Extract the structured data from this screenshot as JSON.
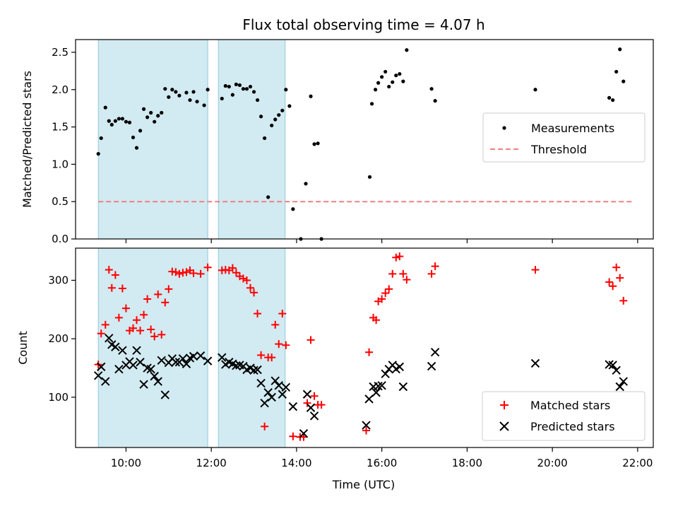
{
  "chart_data": [
    {
      "type": "scatter",
      "title": "Flux total observing time = 4.07 h",
      "ylabel": "Matched/Predicted stars",
      "xlim": [
        "08:49",
        "22:22"
      ],
      "ylim": [
        0,
        2.67
      ],
      "yticks": [
        0.0,
        0.5,
        1.0,
        1.5,
        2.0,
        2.5
      ],
      "ytick_labels": [
        "0.0",
        "0.5",
        "1.0",
        "1.5",
        "2.0",
        "2.5"
      ],
      "legend_position": "center-right",
      "shaded_intervals": [
        [
          "09:21",
          "11:55"
        ],
        [
          "12:10",
          "13:44"
        ]
      ],
      "shade_color": "#add8e6",
      "series": [
        {
          "name": "Measurements",
          "marker": "dot",
          "color": "#000000",
          "points": [
            [
              "09:21",
              1.14
            ],
            [
              "09:25",
              1.35
            ],
            [
              "09:31",
              1.76
            ],
            [
              "09:36",
              1.58
            ],
            [
              "09:40",
              1.53
            ],
            [
              "09:45",
              1.58
            ],
            [
              "09:50",
              1.61
            ],
            [
              "09:55",
              1.61
            ],
            [
              "10:00",
              1.57
            ],
            [
              "10:05",
              1.56
            ],
            [
              "10:10",
              1.36
            ],
            [
              "10:15",
              1.22
            ],
            [
              "10:20",
              1.45
            ],
            [
              "10:25",
              1.74
            ],
            [
              "10:30",
              1.63
            ],
            [
              "10:35",
              1.69
            ],
            [
              "10:40",
              1.57
            ],
            [
              "10:45",
              1.65
            ],
            [
              "10:50",
              1.69
            ],
            [
              "10:55",
              2.01
            ],
            [
              "11:00",
              1.9
            ],
            [
              "11:05",
              2.0
            ],
            [
              "11:10",
              1.97
            ],
            [
              "11:15",
              1.92
            ],
            [
              "11:25",
              1.96
            ],
            [
              "11:30",
              1.86
            ],
            [
              "11:35",
              1.97
            ],
            [
              "11:40",
              1.84
            ],
            [
              "11:50",
              1.79
            ],
            [
              "11:55",
              2.0
            ],
            [
              "12:15",
              1.88
            ],
            [
              "12:20",
              2.05
            ],
            [
              "12:25",
              2.04
            ],
            [
              "12:30",
              1.93
            ],
            [
              "12:35",
              2.07
            ],
            [
              "12:40",
              2.06
            ],
            [
              "12:45",
              2.01
            ],
            [
              "12:50",
              2.01
            ],
            [
              "12:55",
              2.04
            ],
            [
              "13:00",
              1.97
            ],
            [
              "13:05",
              1.86
            ],
            [
              "13:10",
              1.64
            ],
            [
              "13:15",
              1.35
            ],
            [
              "13:20",
              0.56
            ],
            [
              "13:25",
              1.52
            ],
            [
              "13:30",
              1.6
            ],
            [
              "13:35",
              1.66
            ],
            [
              "13:40",
              1.72
            ],
            [
              "13:45",
              2.0
            ],
            [
              "13:50",
              1.78
            ],
            [
              "13:55",
              0.4
            ],
            [
              "14:06",
              0.0
            ],
            [
              "14:13",
              0.74
            ],
            [
              "14:20",
              1.91
            ],
            [
              "14:25",
              1.27
            ],
            [
              "14:30",
              1.28
            ],
            [
              "14:35",
              0.0
            ],
            [
              "15:43",
              0.83
            ],
            [
              "15:46",
              1.81
            ],
            [
              "15:51",
              2.0
            ],
            [
              "15:55",
              2.09
            ],
            [
              "16:00",
              2.17
            ],
            [
              "16:05",
              2.24
            ],
            [
              "16:10",
              2.04
            ],
            [
              "16:15",
              2.1
            ],
            [
              "16:20",
              2.19
            ],
            [
              "16:25",
              2.21
            ],
            [
              "16:30",
              2.11
            ],
            [
              "16:35",
              2.53
            ],
            [
              "17:10",
              2.01
            ],
            [
              "17:15",
              1.85
            ],
            [
              "19:36",
              2.0
            ],
            [
              "21:20",
              1.89
            ],
            [
              "21:25",
              1.86
            ],
            [
              "21:30",
              2.24
            ],
            [
              "21:35",
              2.54
            ],
            [
              "21:40",
              2.11
            ]
          ]
        },
        {
          "name": "Threshold",
          "marker": "dashed-line",
          "color": "#f08080",
          "value": 0.5,
          "x_range": [
            "09:21",
            "21:55"
          ]
        }
      ]
    },
    {
      "type": "scatter",
      "xlabel": "Time (UTC)",
      "ylabel": "Count",
      "xlim": [
        "08:49",
        "22:22"
      ],
      "ylim": [
        14,
        355
      ],
      "xticks": [
        "10:00",
        "12:00",
        "14:00",
        "16:00",
        "18:00",
        "20:00",
        "22:00"
      ],
      "yticks": [
        100,
        200,
        300
      ],
      "ytick_labels": [
        "100",
        "200",
        "300"
      ],
      "legend_position": "bottom-right",
      "shaded_intervals": [
        [
          "09:21",
          "11:55"
        ],
        [
          "12:10",
          "13:44"
        ]
      ],
      "shade_color": "#add8e6",
      "series": [
        {
          "name": "Matched stars",
          "marker": "plus",
          "color": "#ff0000",
          "points": [
            [
              "09:21",
              156
            ],
            [
              "09:25",
              209
            ],
            [
              "09:31",
              224
            ],
            [
              "09:36",
              318
            ],
            [
              "09:40",
              287
            ],
            [
              "09:45",
              309
            ],
            [
              "09:50",
              236
            ],
            [
              "09:55",
              286
            ],
            [
              "10:00",
              252
            ],
            [
              "10:05",
              214
            ],
            [
              "10:10",
              218
            ],
            [
              "10:15",
              232
            ],
            [
              "10:20",
              214
            ],
            [
              "10:25",
              241
            ],
            [
              "10:30",
              268
            ],
            [
              "10:35",
              216
            ],
            [
              "10:40",
              204
            ],
            [
              "10:45",
              276
            ],
            [
              "10:50",
              207
            ],
            [
              "10:55",
              262
            ],
            [
              "11:00",
              285
            ],
            [
              "11:05",
              315
            ],
            [
              "11:10",
              314
            ],
            [
              "11:15",
              311
            ],
            [
              "11:20",
              313
            ],
            [
              "11:25",
              314
            ],
            [
              "11:30",
              317
            ],
            [
              "11:35",
              312
            ],
            [
              "11:45",
              311
            ],
            [
              "11:55",
              322
            ],
            [
              "12:15",
              317
            ],
            [
              "12:20",
              318
            ],
            [
              "12:25",
              317
            ],
            [
              "12:30",
              321
            ],
            [
              "12:35",
              313
            ],
            [
              "12:40",
              307
            ],
            [
              "12:45",
              303
            ],
            [
              "12:50",
              300
            ],
            [
              "12:55",
              287
            ],
            [
              "13:00",
              279
            ],
            [
              "13:05",
              243
            ],
            [
              "13:10",
              172
            ],
            [
              "13:15",
              50
            ],
            [
              "13:20",
              168
            ],
            [
              "13:25",
              168
            ],
            [
              "13:30",
              224
            ],
            [
              "13:35",
              191
            ],
            [
              "13:40",
              243
            ],
            [
              "13:45",
              189
            ],
            [
              "13:55",
              33
            ],
            [
              "14:05",
              32
            ],
            [
              "14:10",
              32
            ],
            [
              "14:15",
              90
            ],
            [
              "14:20",
              198
            ],
            [
              "14:25",
              102
            ],
            [
              "14:30",
              87
            ],
            [
              "14:35",
              87
            ],
            [
              "15:38",
              43
            ],
            [
              "15:42",
              177
            ],
            [
              "15:48",
              236
            ],
            [
              "15:52",
              232
            ],
            [
              "15:55",
              264
            ],
            [
              "16:00",
              268
            ],
            [
              "16:05",
              278
            ],
            [
              "16:10",
              285
            ],
            [
              "16:15",
              311
            ],
            [
              "16:20",
              339
            ],
            [
              "16:25",
              341
            ],
            [
              "16:30",
              311
            ],
            [
              "16:35",
              301
            ],
            [
              "17:10",
              311
            ],
            [
              "17:15",
              324
            ],
            [
              "19:36",
              318
            ],
            [
              "21:20",
              297
            ],
            [
              "21:25",
              290
            ],
            [
              "21:30",
              322
            ],
            [
              "21:35",
              304
            ],
            [
              "21:40",
              265
            ]
          ]
        },
        {
          "name": "Predicted stars",
          "marker": "x",
          "color": "#000000",
          "points": [
            [
              "09:21",
              137
            ],
            [
              "09:25",
              152
            ],
            [
              "09:31",
              127
            ],
            [
              "09:36",
              201
            ],
            [
              "09:40",
              190
            ],
            [
              "09:45",
              186
            ],
            [
              "09:50",
              148
            ],
            [
              "09:55",
              180
            ],
            [
              "10:00",
              155
            ],
            [
              "10:05",
              161
            ],
            [
              "10:10",
              155
            ],
            [
              "10:15",
              180
            ],
            [
              "10:20",
              160
            ],
            [
              "10:25",
              122
            ],
            [
              "10:30",
              150
            ],
            [
              "10:35",
              148
            ],
            [
              "10:40",
              136
            ],
            [
              "10:45",
              127
            ],
            [
              "10:50",
              163
            ],
            [
              "10:55",
              104
            ],
            [
              "11:00",
              159
            ],
            [
              "11:05",
              166
            ],
            [
              "11:10",
              160
            ],
            [
              "11:15",
              160
            ],
            [
              "11:20",
              166
            ],
            [
              "11:25",
              157
            ],
            [
              "11:30",
              167
            ],
            [
              "11:35",
              170
            ],
            [
              "11:45",
              171
            ],
            [
              "11:55",
              162
            ],
            [
              "12:15",
              168
            ],
            [
              "12:20",
              156
            ],
            [
              "12:25",
              160
            ],
            [
              "12:30",
              157
            ],
            [
              "12:35",
              154
            ],
            [
              "12:40",
              155
            ],
            [
              "12:45",
              153
            ],
            [
              "12:50",
              147
            ],
            [
              "12:55",
              150
            ],
            [
              "13:00",
              146
            ],
            [
              "13:05",
              147
            ],
            [
              "13:10",
              124
            ],
            [
              "13:15",
              90
            ],
            [
              "13:20",
              108
            ],
            [
              "13:25",
              100
            ],
            [
              "13:30",
              128
            ],
            [
              "13:35",
              120
            ],
            [
              "13:40",
              105
            ],
            [
              "13:45",
              117
            ],
            [
              "13:55",
              84
            ],
            [
              "14:10",
              38
            ],
            [
              "14:15",
              105
            ],
            [
              "14:20",
              82
            ],
            [
              "14:25",
              68
            ],
            [
              "15:38",
              52
            ],
            [
              "15:42",
              97
            ],
            [
              "15:48",
              118
            ],
            [
              "15:52",
              108
            ],
            [
              "15:55",
              119
            ],
            [
              "16:00",
              120
            ],
            [
              "16:05",
              140
            ],
            [
              "16:10",
              148
            ],
            [
              "16:15",
              155
            ],
            [
              "16:20",
              148
            ],
            [
              "16:25",
              152
            ],
            [
              "16:30",
              118
            ],
            [
              "17:10",
              153
            ],
            [
              "17:15",
              177
            ],
            [
              "19:36",
              158
            ],
            [
              "21:20",
              156
            ],
            [
              "21:25",
              155
            ],
            [
              "21:30",
              146
            ],
            [
              "21:35",
              118
            ],
            [
              "21:40",
              127
            ]
          ]
        }
      ]
    }
  ]
}
